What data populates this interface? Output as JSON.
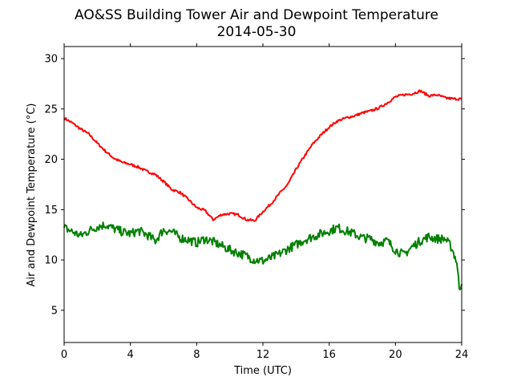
{
  "chart_data": {
    "type": "line",
    "title": "AO&SS Building Tower Air and Dewpoint Temperature",
    "subtitle": "2014-05-30",
    "xlabel": "Time (UTC)",
    "ylabel": "Air and Dewpoint Temperature (°C)",
    "xlim": [
      0,
      24
    ],
    "ylim": [
      1.8,
      31.2
    ],
    "xticks": [
      0,
      4,
      8,
      12,
      16,
      20,
      24
    ],
    "yticks": [
      5,
      10,
      15,
      20,
      25,
      30
    ],
    "grid": false,
    "legend": "none",
    "series": [
      {
        "color": "#ff0000",
        "x": [
          0,
          0.5,
          1,
          1.5,
          2,
          2.5,
          3,
          3.5,
          4,
          4.5,
          5,
          5.5,
          6,
          6.5,
          7,
          7.5,
          8,
          8.5,
          9,
          9.5,
          10,
          10.5,
          11,
          11.5,
          12,
          12.5,
          13,
          13.5,
          14,
          14.5,
          15,
          15.5,
          16,
          16.5,
          17,
          17.5,
          18,
          18.5,
          19,
          19.5,
          20,
          20.5,
          21,
          21.5,
          22,
          22.5,
          23,
          23.5,
          24
        ],
        "values": [
          24.1,
          23.6,
          23.0,
          22.5,
          21.6,
          20.8,
          20.1,
          19.7,
          19.5,
          19.2,
          18.8,
          18.5,
          17.8,
          17.0,
          16.7,
          16.0,
          15.2,
          14.9,
          14.0,
          14.5,
          14.6,
          14.5,
          14.0,
          13.9,
          14.8,
          15.6,
          16.6,
          17.5,
          19.0,
          20.3,
          21.5,
          22.4,
          23.2,
          23.8,
          24.1,
          24.3,
          24.6,
          24.8,
          25.1,
          25.6,
          26.2,
          26.4,
          26.5,
          26.8,
          26.3,
          26.4,
          26.1,
          26.0,
          26.0
        ]
      },
      {
        "color": "#008000",
        "x": [
          0,
          0.5,
          1,
          1.5,
          2,
          2.5,
          3,
          3.5,
          4,
          4.5,
          5,
          5.5,
          6,
          6.5,
          7,
          7.5,
          8,
          8.5,
          9,
          9.5,
          10,
          10.5,
          11,
          11.5,
          12,
          12.5,
          13,
          13.5,
          14,
          14.5,
          15,
          15.5,
          16,
          16.5,
          17,
          17.5,
          18,
          18.5,
          19,
          19.5,
          20,
          20.5,
          21,
          21.5,
          22,
          22.5,
          23,
          23.4,
          23.7,
          23.85,
          24
        ],
        "values": [
          13.2,
          12.8,
          12.4,
          12.9,
          13.3,
          13.5,
          13.1,
          12.8,
          12.6,
          12.9,
          12.5,
          11.9,
          13.0,
          12.8,
          12.2,
          12.0,
          11.7,
          12.1,
          11.8,
          11.4,
          11.0,
          10.7,
          10.4,
          10.0,
          9.9,
          10.2,
          10.6,
          11.1,
          11.5,
          12.0,
          12.3,
          12.6,
          12.9,
          13.2,
          12.9,
          12.6,
          12.2,
          12.1,
          11.7,
          11.9,
          11.0,
          10.5,
          11.3,
          11.9,
          12.3,
          12.1,
          12.1,
          11.2,
          9.8,
          7.3,
          7.6
        ]
      }
    ]
  }
}
